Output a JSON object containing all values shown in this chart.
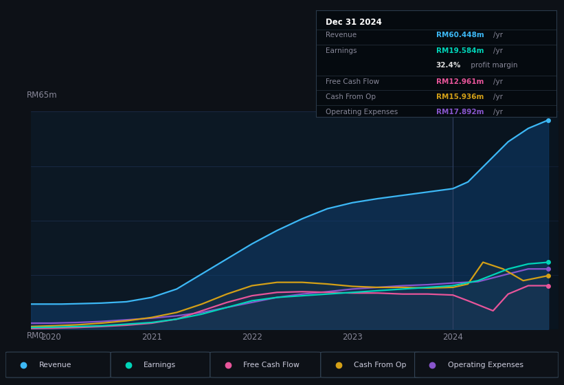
{
  "bg_color": "#0d1117",
  "plot_bg_color": "#0c1824",
  "highlight_bg": "#111d2b",
  "y_label_top": "RM65m",
  "y_label_bottom": "RM0",
  "x_ticks": [
    2020,
    2021,
    2022,
    2023,
    2024
  ],
  "ylim": [
    0,
    65
  ],
  "xlim_start": 2019.8,
  "xlim_end": 2025.05,
  "highlight_x": 2024.0,
  "grid_color": "#1e3050",
  "grid_y_values": [
    0,
    16.25,
    32.5,
    48.75,
    65
  ],
  "text_color": "#888899",
  "info_box": {
    "date": "Dec 31 2024",
    "rows": [
      {
        "label": "Revenue",
        "value": "RM60.448m",
        "unit": "/yr",
        "color": "#3db8f5"
      },
      {
        "label": "Earnings",
        "value": "RM19.584m",
        "unit": "/yr",
        "color": "#00d4b8"
      },
      {
        "label": "",
        "value": "32.4%",
        "unit": " profit margin",
        "color": "#dddddd"
      },
      {
        "label": "Free Cash Flow",
        "value": "RM12.961m",
        "unit": "/yr",
        "color": "#e8559a"
      },
      {
        "label": "Cash From Op",
        "value": "RM15.936m",
        "unit": "/yr",
        "color": "#d4a017"
      },
      {
        "label": "Operating Expenses",
        "value": "RM17.892m",
        "unit": "/yr",
        "color": "#8855cc"
      }
    ]
  },
  "series": {
    "revenue": {
      "color": "#3db8f5",
      "fill_alpha": 0.55,
      "fill_color": "#0e3d6e",
      "label": "Revenue",
      "x": [
        2019.8,
        2020.0,
        2020.1,
        2020.25,
        2020.5,
        2020.75,
        2021.0,
        2021.25,
        2021.5,
        2021.75,
        2022.0,
        2022.25,
        2022.5,
        2022.75,
        2023.0,
        2023.25,
        2023.5,
        2023.75,
        2024.0,
        2024.15,
        2024.35,
        2024.55,
        2024.75,
        2024.95
      ],
      "y": [
        7.5,
        7.5,
        7.5,
        7.6,
        7.8,
        8.2,
        9.5,
        12.0,
        16.5,
        21.0,
        25.5,
        29.5,
        33.0,
        36.0,
        37.8,
        39.0,
        40.0,
        41.0,
        42.0,
        44.0,
        50.0,
        56.0,
        60.0,
        62.5
      ]
    },
    "earnings": {
      "color": "#00d4b8",
      "fill_alpha": 0.3,
      "fill_color": "#004d44",
      "label": "Earnings",
      "x": [
        2019.8,
        2020.0,
        2020.25,
        2020.5,
        2020.75,
        2021.0,
        2021.25,
        2021.5,
        2021.75,
        2022.0,
        2022.25,
        2022.5,
        2022.75,
        2023.0,
        2023.25,
        2023.5,
        2023.75,
        2024.0,
        2024.25,
        2024.55,
        2024.75,
        2024.95
      ],
      "y": [
        0.5,
        0.6,
        0.8,
        1.0,
        1.5,
        2.0,
        3.0,
        4.5,
        6.5,
        8.5,
        9.5,
        10.0,
        10.5,
        11.0,
        11.5,
        12.0,
        12.5,
        13.0,
        14.5,
        18.0,
        19.5,
        20.0
      ]
    },
    "free_cash_flow": {
      "color": "#e8559a",
      "fill_alpha": 0.25,
      "fill_color": "#5a1540",
      "label": "Free Cash Flow",
      "x": [
        2019.8,
        2020.0,
        2020.25,
        2020.5,
        2020.75,
        2021.0,
        2021.25,
        2021.5,
        2021.75,
        2022.0,
        2022.25,
        2022.5,
        2022.75,
        2023.0,
        2023.25,
        2023.5,
        2023.75,
        2024.0,
        2024.15,
        2024.4,
        2024.55,
        2024.75,
        2024.95
      ],
      "y": [
        0.2,
        0.3,
        0.5,
        0.8,
        1.2,
        1.8,
        3.0,
        5.5,
        8.0,
        10.0,
        11.0,
        11.2,
        11.0,
        10.8,
        10.8,
        10.5,
        10.5,
        10.2,
        8.5,
        5.5,
        10.5,
        13.0,
        13.0
      ]
    },
    "cash_from_op": {
      "color": "#d4a017",
      "fill_alpha": 0.3,
      "fill_color": "#3d2800",
      "label": "Cash From Op",
      "x": [
        2019.8,
        2020.0,
        2020.25,
        2020.5,
        2020.75,
        2021.0,
        2021.25,
        2021.5,
        2021.75,
        2022.0,
        2022.25,
        2022.5,
        2022.75,
        2023.0,
        2023.25,
        2023.5,
        2023.75,
        2024.0,
        2024.15,
        2024.3,
        2024.5,
        2024.7,
        2024.95
      ],
      "y": [
        0.8,
        1.0,
        1.3,
        1.8,
        2.5,
        3.5,
        5.0,
        7.5,
        10.5,
        13.0,
        14.0,
        14.0,
        13.5,
        12.8,
        12.5,
        12.5,
        12.3,
        12.5,
        13.5,
        20.0,
        18.0,
        14.5,
        16.0
      ]
    },
    "operating_expenses": {
      "color": "#8855cc",
      "fill_alpha": 0.45,
      "fill_color": "#2a0e50",
      "label": "Operating Expenses",
      "x": [
        2019.8,
        2020.0,
        2020.25,
        2020.5,
        2020.75,
        2021.0,
        2021.25,
        2021.5,
        2021.75,
        2022.0,
        2022.25,
        2022.5,
        2022.75,
        2023.0,
        2023.25,
        2023.5,
        2023.75,
        2024.0,
        2024.25,
        2024.55,
        2024.75,
        2024.95
      ],
      "y": [
        1.8,
        1.8,
        2.0,
        2.3,
        2.8,
        3.3,
        4.0,
        5.0,
        6.5,
        8.0,
        9.5,
        10.5,
        11.2,
        12.0,
        12.5,
        13.0,
        13.3,
        13.8,
        14.2,
        16.5,
        18.0,
        18.0
      ]
    }
  },
  "legend": [
    {
      "label": "Revenue",
      "color": "#3db8f5"
    },
    {
      "label": "Earnings",
      "color": "#00d4b8"
    },
    {
      "label": "Free Cash Flow",
      "color": "#e8559a"
    },
    {
      "label": "Cash From Op",
      "color": "#d4a017"
    },
    {
      "label": "Operating Expenses",
      "color": "#8855cc"
    }
  ]
}
